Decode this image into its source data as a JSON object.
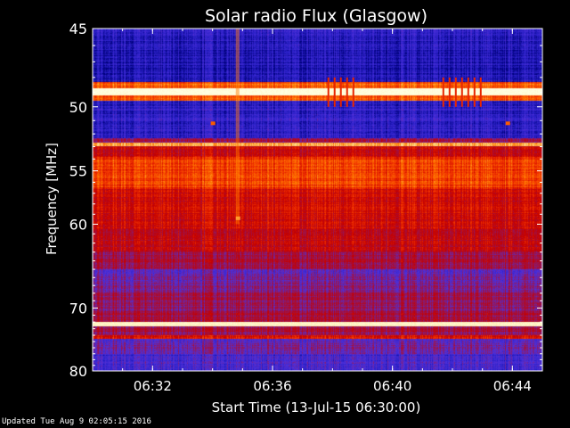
{
  "chart_data": {
    "type": "heatmap",
    "title": "Solar radio Flux (Glasgow)",
    "xlabel": "Start Time (13-Jul-15 06:30:00)",
    "ylabel": "Frequency [MHz]",
    "x_unit": "time (HH:MM)",
    "xlim": [
      "06:30",
      "06:45"
    ],
    "ylim": [
      45,
      80
    ],
    "yscale": "reciprocal (high frequency at top, 80 MHz at bottom)",
    "x_ticks": [
      {
        "time": "06:32",
        "label": "06:32"
      },
      {
        "time": "06:36",
        "label": "06:36"
      },
      {
        "time": "06:40",
        "label": "06:40"
      },
      {
        "time": "06:44",
        "label": "06:44"
      }
    ],
    "y_ticks": [
      {
        "value": 45,
        "label": "45"
      },
      {
        "value": 50,
        "label": "50"
      },
      {
        "value": 55,
        "label": "55"
      },
      {
        "value": 60,
        "label": "60"
      },
      {
        "value": 70,
        "label": "70"
      },
      {
        "value": 80,
        "label": "80"
      }
    ],
    "colormap": [
      "#00007c",
      "#2a20c8",
      "#5030d8",
      "#9a1450",
      "#c40000",
      "#f03000",
      "#ff7800",
      "#ffd070",
      "#ffffe0"
    ],
    "frequency_bands": [
      {
        "from": 45.0,
        "to": 46.2,
        "level": 0.12
      },
      {
        "from": 46.2,
        "to": 48.3,
        "level": 0.1
      },
      {
        "from": 48.3,
        "to": 48.7,
        "level": 0.7
      },
      {
        "from": 48.7,
        "to": 49.2,
        "level": 0.98
      },
      {
        "from": 49.2,
        "to": 49.6,
        "level": 0.7
      },
      {
        "from": 49.6,
        "to": 52.3,
        "level": 0.14
      },
      {
        "from": 52.3,
        "to": 52.7,
        "level": 0.4
      },
      {
        "from": 52.7,
        "to": 53.0,
        "level": 0.82
      },
      {
        "from": 53.0,
        "to": 53.8,
        "level": 0.5
      },
      {
        "from": 53.8,
        "to": 56.6,
        "level": 0.64
      },
      {
        "from": 56.6,
        "to": 60.5,
        "level": 0.52
      },
      {
        "from": 60.5,
        "to": 63.0,
        "level": 0.48
      },
      {
        "from": 63.0,
        "to": 65.0,
        "level": 0.4
      },
      {
        "from": 65.0,
        "to": 67.5,
        "level": 0.3
      },
      {
        "from": 67.5,
        "to": 70.5,
        "level": 0.36
      },
      {
        "from": 70.5,
        "to": 72.0,
        "level": 0.42
      },
      {
        "from": 72.0,
        "to": 72.6,
        "level": 0.95
      },
      {
        "from": 72.6,
        "to": 74.0,
        "level": 0.4
      },
      {
        "from": 74.0,
        "to": 74.5,
        "level": 0.55
      },
      {
        "from": 74.5,
        "to": 77.0,
        "level": 0.28
      },
      {
        "from": 77.0,
        "to": 80.0,
        "level": 0.2
      }
    ],
    "features": [
      {
        "kind": "vertical-streak",
        "time": "06:34:50",
        "freq_from": 45,
        "freq_to": 60,
        "level": 0.75
      },
      {
        "kind": "burst-ticks",
        "time_from": "06:37:50",
        "time_to": "06:38:50",
        "freq_from": 48.0,
        "freq_to": 50.0,
        "level": 0.6
      },
      {
        "kind": "burst-ticks",
        "time_from": "06:41:40",
        "time_to": "06:43:00",
        "freq_from": 48.0,
        "freq_to": 50.0,
        "level": 0.6
      },
      {
        "kind": "spot",
        "time": "06:34:00",
        "freq": 51.2,
        "level": 0.7
      },
      {
        "kind": "spot",
        "time": "06:43:50",
        "freq": 51.2,
        "level": 0.7
      },
      {
        "kind": "spot",
        "time": "06:34:50",
        "freq": 59.4,
        "level": 0.8
      }
    ]
  },
  "footer": {
    "updated_text": "Updated Tue Aug  9 02:05:15 2016"
  }
}
